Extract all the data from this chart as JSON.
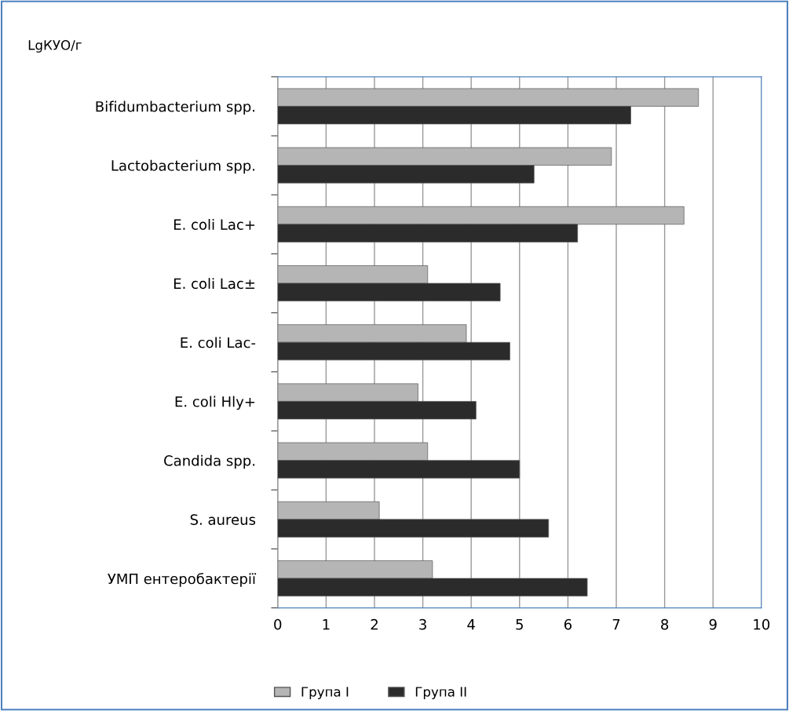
{
  "chart_data": {
    "type": "bar",
    "orientation": "horizontal",
    "ylabel": "LgКУО/г",
    "categories": [
      "Bifidumbacterium spp.",
      "Lactobacterium spp.",
      "E. coli Lac+",
      "E. coli Lac±",
      "E. coli Lac-",
      "E. coli Hly+",
      "Candida spp.",
      "S. aureus",
      "УМП ентеробактерії"
    ],
    "series": [
      {
        "name": "Група I",
        "color": "#b5b5b5",
        "values": [
          8.7,
          6.9,
          8.4,
          3.1,
          3.9,
          2.9,
          3.1,
          2.1,
          3.2
        ]
      },
      {
        "name": "Група II",
        "color": "#2b2b2b",
        "values": [
          7.3,
          5.3,
          6.2,
          4.6,
          4.8,
          4.1,
          5.0,
          5.6,
          6.4
        ]
      }
    ],
    "xlim": [
      0,
      10
    ],
    "xticks": [
      0,
      1,
      2,
      3,
      4,
      5,
      6,
      7,
      8,
      9,
      10
    ],
    "grid": "x",
    "legend": "bottom"
  }
}
